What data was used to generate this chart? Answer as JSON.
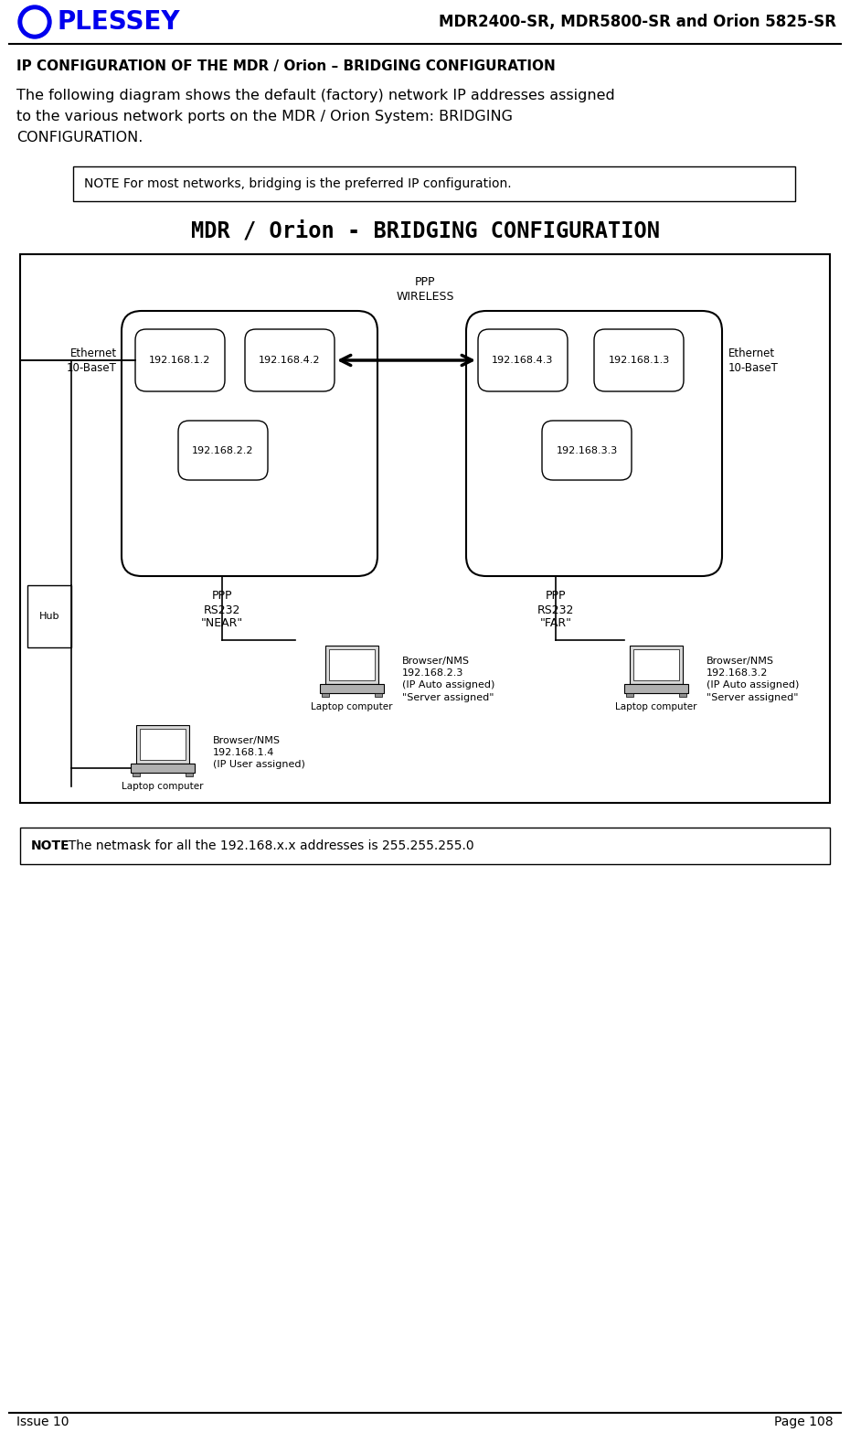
{
  "page_title": "MDR2400-SR, MDR5800-SR and Orion 5825-SR",
  "header_title": "IP CONFIGURATION OF THE MDR / Orion – BRIDGING CONFIGURATION",
  "body_text_1": "The following diagram shows the default (factory) network IP addresses assigned",
  "body_text_2": "to the various network ports on the MDR / Orion System: BRIDGING",
  "body_text_3": "CONFIGURATION.",
  "note1_text": "NOTE For most networks, bridging is the preferred IP configuration.",
  "diagram_title": "MDR / Orion - BRIDGING CONFIGURATION",
  "note2_bold": "NOTE",
  "note2_text": "  The netmask for all the 192.168.x.x addresses is 255.255.255.0",
  "footer_left": "Issue 10",
  "footer_right": "Page 108",
  "plessey_text": "PLESSEY",
  "plessey_color": "#0000EE",
  "logo_circle_color": "#0000EE",
  "bg_color": "#FFFFFF",
  "near_ips": [
    "192.168.1.2",
    "192.168.4.2",
    "192.168.2.2"
  ],
  "far_ips": [
    "192.168.4.3",
    "192.168.1.3",
    "192.168.3.3"
  ],
  "near_label": "\"NEAR\"",
  "far_label": "\"FAR\"",
  "near_ppp": "PPP\nRS232",
  "far_ppp": "PPP\nRS232",
  "wireless_label": "PPP\nWIRELESS",
  "ethernet_left": "Ethernet\n10-BaseT",
  "ethernet_right": "Ethernet\n10-BaseT",
  "hub_label": "Hub",
  "laptop1_label": "Laptop computer",
  "laptop1_info": "Browser/NMS\n192.168.1.4\n(IP User assigned)",
  "laptop2_label": "Laptop computer",
  "laptop2_info": "Browser/NMS\n192.168.2.3\n(IP Auto assigned)\n\"Server assigned\"",
  "laptop3_label": "Laptop computer",
  "laptop3_info": "Browser/NMS\n192.168.3.2\n(IP Auto assigned)\n\"Server assigned\""
}
